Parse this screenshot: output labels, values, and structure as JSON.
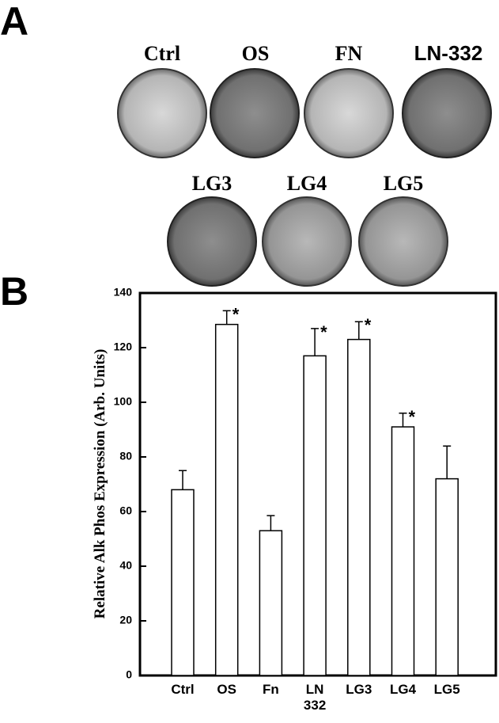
{
  "panel_a": {
    "label": "A",
    "dishes": [
      {
        "label": "Ctrl"
      },
      {
        "label": "OS"
      },
      {
        "label": "FN"
      },
      {
        "label": "LN-332"
      },
      {
        "label": "LG3"
      },
      {
        "label": "LG4"
      },
      {
        "label": "LG5"
      }
    ]
  },
  "panel_b": {
    "label": "B"
  },
  "chart_data": {
    "type": "bar",
    "y_label": "Relative Alk Phos Expression (Arb. Units)",
    "categories": [
      "Ctrl",
      "OS",
      "Fn",
      "LN 332",
      "LG3",
      "LG4",
      "LG5"
    ],
    "values": [
      68,
      128.5,
      53,
      117,
      123,
      91,
      72
    ],
    "errors": [
      7,
      5,
      5.5,
      10,
      6.5,
      5,
      12
    ],
    "significance": [
      null,
      "*",
      null,
      "*",
      "*",
      "*",
      null
    ],
    "color": "#ffffff",
    "ylim": [
      0,
      140
    ],
    "yticks": [
      0,
      20,
      40,
      60,
      80,
      100,
      120,
      140
    ]
  }
}
